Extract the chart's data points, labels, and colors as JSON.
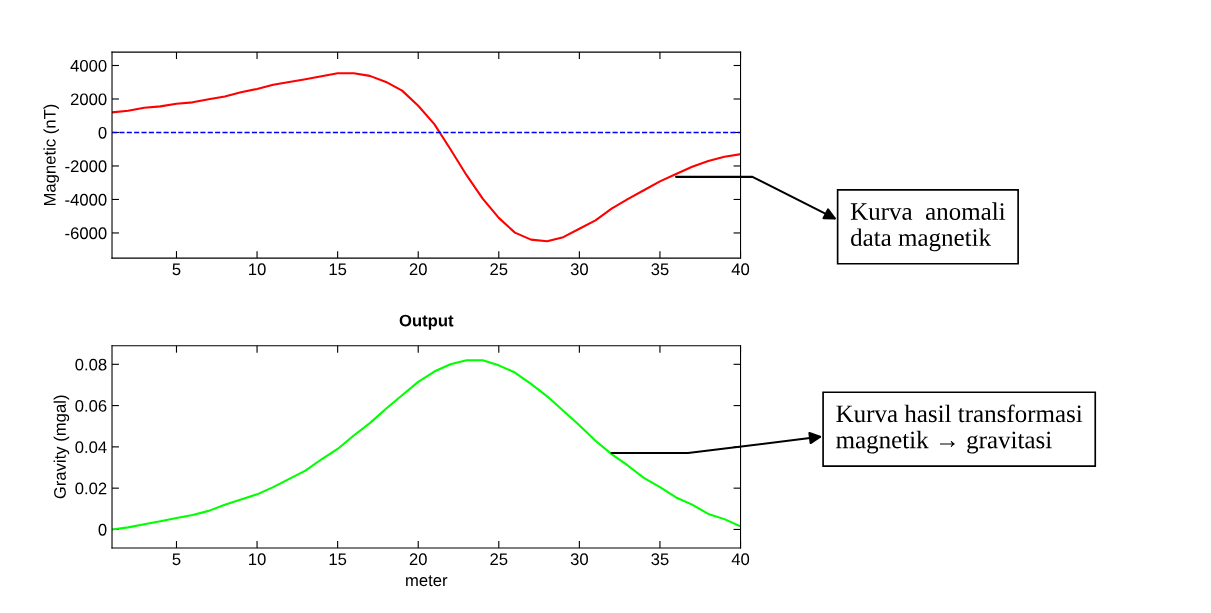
{
  "chart_data": [
    {
      "type": "line",
      "ylabel": "Magnetic (nT)",
      "x": [
        1,
        2,
        3,
        4,
        5,
        6,
        7,
        8,
        9,
        10,
        11,
        12,
        13,
        14,
        15,
        16,
        17,
        18,
        19,
        20,
        21,
        22,
        23,
        24,
        25,
        26,
        27,
        28,
        29,
        30,
        31,
        32,
        33,
        34,
        35,
        36,
        37,
        38,
        39,
        40
      ],
      "series": [
        {
          "color": "#ff0000",
          "values": [
            1200,
            1300,
            1480,
            1560,
            1720,
            1800,
            1980,
            2150,
            2400,
            2600,
            2850,
            3020,
            3180,
            3360,
            3540,
            3540,
            3380,
            3020,
            2500,
            1600,
            500,
            -1000,
            -2550,
            -3950,
            -5100,
            -5980,
            -6400,
            -6500,
            -6250,
            -5750,
            -5250,
            -4550,
            -3980,
            -3450,
            -2920,
            -2480,
            -2050,
            -1700,
            -1450,
            -1300
          ]
        }
      ],
      "xlim": [
        1,
        40
      ],
      "xticks": [
        5,
        10,
        15,
        20,
        25,
        30,
        35,
        40
      ],
      "ylim": [
        -7500,
        4800
      ],
      "yticks": [
        -6000,
        -4000,
        -2000,
        0,
        2000,
        4000
      ],
      "ref_lines": [
        {
          "axis": "y",
          "value": 0,
          "color": "#0000ff",
          "line_style": "dashed"
        }
      ],
      "annotations": [
        {
          "text": "Kurva  anomali\ndata magnetik",
          "x": 36,
          "y": -2650
        }
      ]
    },
    {
      "type": "line",
      "title": "Output",
      "xlabel": "meter",
      "ylabel": "Gravity (mgal)",
      "x": [
        1,
        2,
        3,
        4,
        5,
        6,
        7,
        8,
        9,
        10,
        11,
        12,
        13,
        14,
        15,
        16,
        17,
        18,
        19,
        20,
        21,
        22,
        23,
        24,
        25,
        26,
        27,
        28,
        29,
        30,
        31,
        32,
        33,
        34,
        35,
        36,
        37,
        38,
        39,
        40
      ],
      "series": [
        {
          "color": "#00ff00",
          "values": [
            0.0,
            0.001,
            0.0025,
            0.004,
            0.0055,
            0.007,
            0.009,
            0.012,
            0.0145,
            0.017,
            0.0205,
            0.0245,
            0.0285,
            0.034,
            0.039,
            0.0455,
            0.0515,
            0.0585,
            0.065,
            0.0715,
            0.0765,
            0.08,
            0.082,
            0.082,
            0.0795,
            0.076,
            0.0705,
            0.0645,
            0.0575,
            0.0505,
            0.043,
            0.0365,
            0.031,
            0.025,
            0.0205,
            0.0155,
            0.012,
            0.0075,
            0.005,
            0.0015
          ]
        }
      ],
      "xlim": [
        1,
        40
      ],
      "xticks": [
        5,
        10,
        15,
        20,
        25,
        30,
        35,
        40
      ],
      "ylim": [
        -0.009,
        0.089
      ],
      "yticks": [
        0,
        0.02,
        0.04,
        0.06,
        0.08
      ],
      "annotations": [
        {
          "text": "Kurva hasil transformasi\nmagnetik → gravitasi",
          "x": 32,
          "y": 0.037
        }
      ]
    }
  ]
}
